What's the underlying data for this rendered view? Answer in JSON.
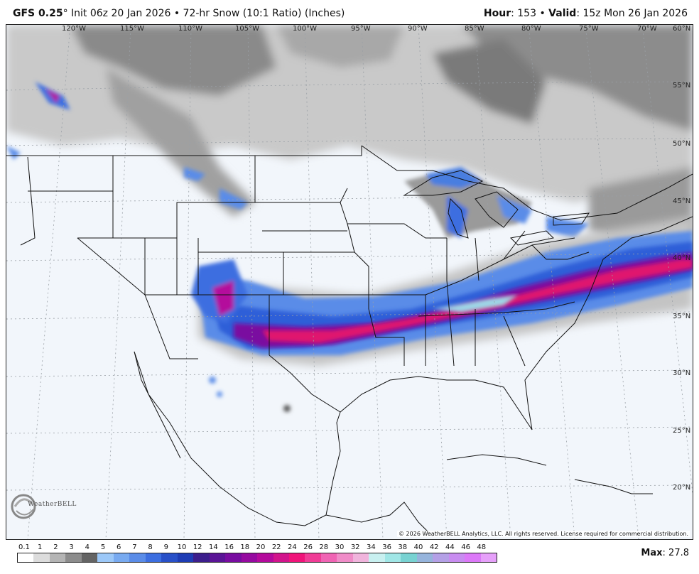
{
  "header": {
    "model": "GFS 0.25",
    "degree": "°",
    "rest": "Init 06z 20 Jan 2026 • 72-hr Snow (10:1 Ratio) (Inches)",
    "hour_label": "Hour",
    "hour_value": ": 153 •",
    "valid_label": "Valid",
    "valid_value": ": 15z Mon 26 Jan 2026"
  },
  "longitudes": [
    "120°W",
    "115°W",
    "110°W",
    "105°W",
    "100°W",
    "95°W",
    "90°W",
    "85°W",
    "80°W",
    "75°W",
    "70°W",
    "60°N"
  ],
  "latitudes": [
    "55°N",
    "50°N",
    "45°N",
    "40°N",
    "35°N",
    "30°N",
    "25°N",
    "20°N"
  ],
  "copyright": "© 2026 WeatherBELL Analytics, LLC. All rights reserved. License required for commercial distribution.",
  "logo_text": "WeatherBELL",
  "legend": {
    "labels": [
      "0.1",
      "1",
      "2",
      "3",
      "4",
      "5",
      "6",
      "7",
      "8",
      "9",
      "10",
      "12",
      "14",
      "16",
      "18",
      "20",
      "22",
      "24",
      "26",
      "28",
      "30",
      "32",
      "34",
      "36",
      "38",
      "40",
      "42",
      "44",
      "46",
      "48"
    ],
    "colors": [
      "#ffffff",
      "#dcdcdc",
      "#b4b4b4",
      "#8c8c8c",
      "#646464",
      "#9cc8f8",
      "#78aaf0",
      "#5a8ce8",
      "#3c6ee0",
      "#2850c8",
      "#1e3cb4",
      "#3c1e8c",
      "#5a1496",
      "#780ca0",
      "#960aa0",
      "#b40a9c",
      "#d2148c",
      "#f0147a",
      "#f03c96",
      "#f064b4",
      "#f08cc8",
      "#f0b4dc",
      "#c8f0f0",
      "#a0e6e6",
      "#78d2d2",
      "#96b4dc",
      "#b4a0e6",
      "#c88cf0",
      "#dc78f8",
      "#e6a0fa"
    ]
  },
  "max": {
    "label": "Max",
    "value": ": 27.8"
  }
}
